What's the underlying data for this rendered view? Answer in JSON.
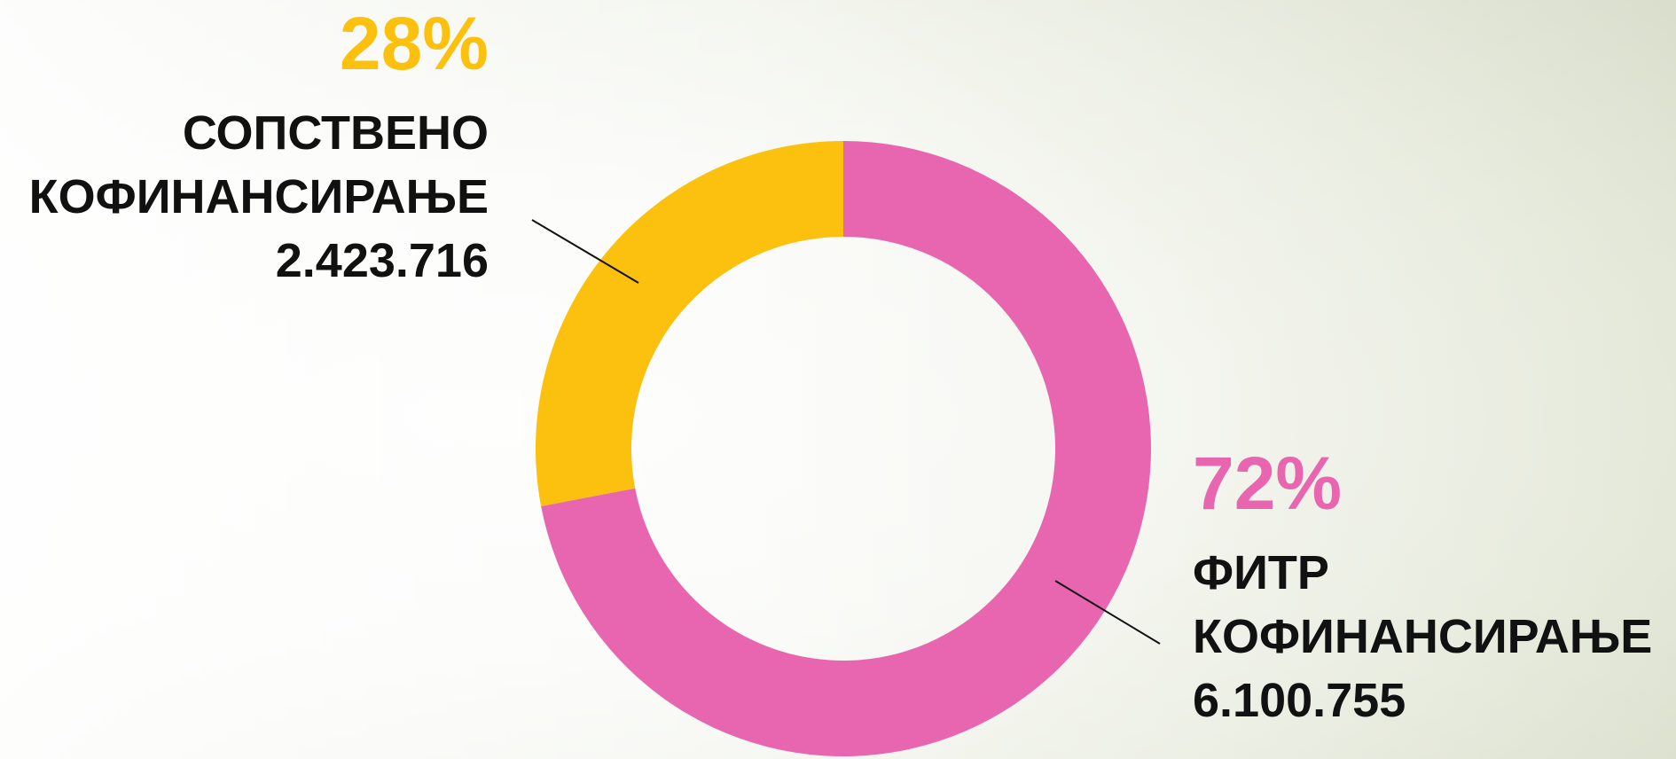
{
  "chart_data": {
    "type": "pie",
    "donut": true,
    "categories": [
      "ФИТР КОФИНАНСИРАЊЕ",
      "СОПСТВЕНО КОФИНАНСИРАЊЕ"
    ],
    "values": [
      72,
      28
    ],
    "value_labels": [
      "72%",
      "28%"
    ],
    "amounts": [
      6100755,
      2423716
    ],
    "amount_labels": [
      "6.100.755",
      "2.423.716"
    ],
    "colors": [
      "#e866b0",
      "#fbc10e"
    ]
  }
}
